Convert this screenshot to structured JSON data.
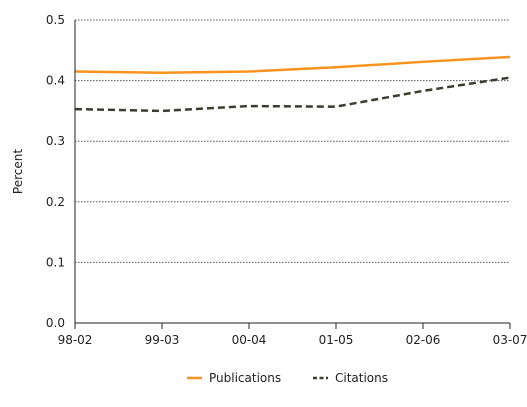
{
  "chart_data": {
    "type": "line",
    "title": "",
    "xlabel": "",
    "ylabel": "Percent",
    "categories": [
      "98-02",
      "99-03",
      "00-04",
      "01-05",
      "02-06",
      "03-07"
    ],
    "ylim": [
      0.0,
      0.5
    ],
    "yticks": [
      "0.0",
      "0.1",
      "0.2",
      "0.3",
      "0.4",
      "0.5"
    ],
    "grid": "horizontal dotted",
    "legend_position": "bottom",
    "series": [
      {
        "name": "Publications",
        "color": "#f7931e",
        "style": "solid",
        "values": [
          0.415,
          0.413,
          0.415,
          0.422,
          0.431,
          0.439
        ]
      },
      {
        "name": "Citations",
        "color": "#3d3d2f",
        "style": "dashed",
        "values": [
          0.353,
          0.35,
          0.358,
          0.357,
          0.383,
          0.405
        ]
      }
    ]
  }
}
